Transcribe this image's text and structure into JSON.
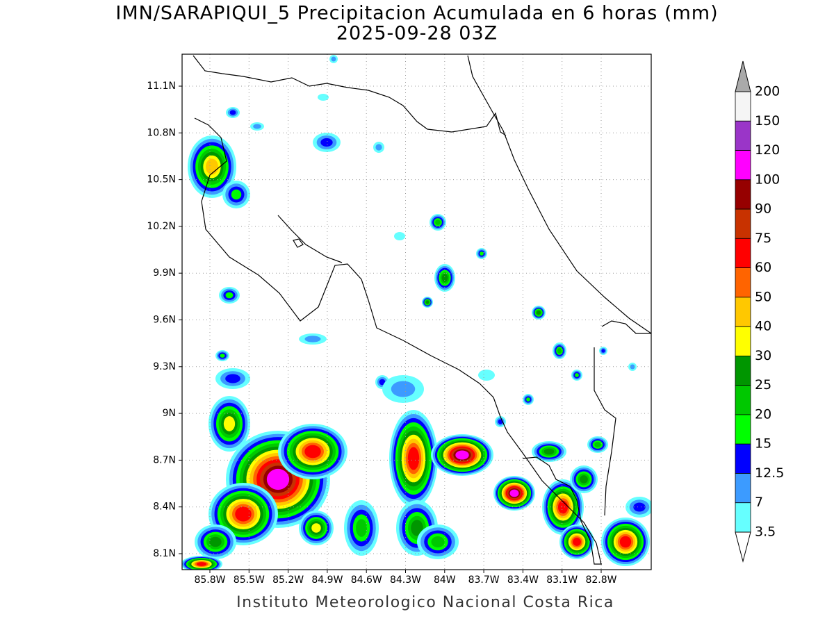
{
  "header": {
    "title": "IMN/SARAPIQUI_5 Precipitacion Acumulada en 6 horas (mm)",
    "subtitle": "2025-09-28 03Z"
  },
  "map": {
    "lat_ticks": [
      "11.1N",
      "10.8N",
      "10.5N",
      "10.2N",
      "9.9N",
      "9.6N",
      "9.3N",
      "9N",
      "8.7N",
      "8.4N",
      "8.1N"
    ],
    "lon_ticks": [
      "85.8W",
      "85.5W",
      "85.2W",
      "84.9W",
      "84.6W",
      "84.3W",
      "84W",
      "83.7W",
      "83.4W",
      "83.1W",
      "82.8W"
    ]
  },
  "colorbar": {
    "labels": [
      "200",
      "150",
      "120",
      "100",
      "90",
      "75",
      "60",
      "50",
      "40",
      "30",
      "25",
      "20",
      "15",
      "12.5",
      "7",
      "3.5"
    ],
    "colors": [
      "#f5f5f5",
      "#9a35c8",
      "#ff00ff",
      "#960000",
      "#c83200",
      "#ff0000",
      "#ff6400",
      "#ffc800",
      "#ffff00",
      "#009600",
      "#00c800",
      "#00ff00",
      "#0000ff",
      "#3c9bff",
      "#66ffff"
    ],
    "over_color": "#aaaaaa",
    "under_color": "#ffffff"
  },
  "footer": "Instituto Meteorologico Nacional Costa Rica"
}
